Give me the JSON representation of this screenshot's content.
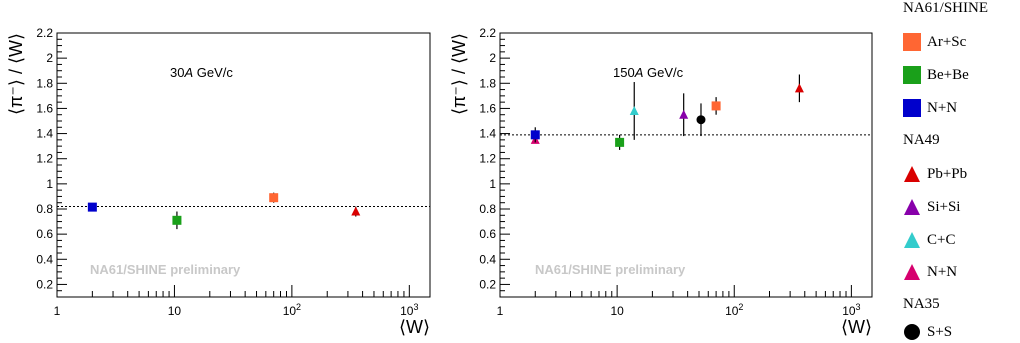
{
  "chart_data": [
    {
      "type": "scatter",
      "annotation": "30A GeV/c",
      "annotation_parts": [
        "30",
        "A",
        " GeV/c"
      ],
      "watermark": "NA61/SHINE preliminary",
      "xlabel": "⟨W⟩",
      "ylabel": "⟨π⁻⟩ / ⟨W⟩",
      "x_scale": "log",
      "xlim": [
        1,
        1500
      ],
      "ylim": [
        0.1,
        2.2
      ],
      "x_tick_labels": [
        "1",
        "10",
        "10²",
        "10³"
      ],
      "y_tick_labels": [
        "0.2",
        "0.4",
        "0.6",
        "0.8",
        "1",
        "1.2",
        "1.4",
        "1.6",
        "1.8",
        "2",
        "2.2"
      ],
      "reference_line": 0.82,
      "series": [
        {
          "name": "N+N",
          "marker": "square",
          "color": "#0000cc",
          "x": [
            2
          ],
          "y": [
            0.815
          ],
          "err": [
            0.02
          ]
        },
        {
          "name": "Be+Be",
          "marker": "square",
          "color": "#1aa01a",
          "x": [
            10.5
          ],
          "y": [
            0.71
          ],
          "err": [
            0.07
          ]
        },
        {
          "name": "Ar+Sc",
          "marker": "square",
          "color": "#ff6633",
          "x": [
            70
          ],
          "y": [
            0.89
          ],
          "err": [
            0.04
          ]
        },
        {
          "name": "Pb+Pb",
          "marker": "triangle",
          "color": "#d90000",
          "x": [
            350
          ],
          "y": [
            0.78
          ],
          "err": [
            0.04
          ]
        }
      ]
    },
    {
      "type": "scatter",
      "annotation": "150A GeV/c",
      "annotation_parts": [
        "150",
        "A",
        " GeV/c"
      ],
      "watermark": "NA61/SHINE preliminary",
      "xlabel": "⟨W⟩",
      "ylabel": "⟨π⁻⟩ / ⟨W⟩",
      "x_scale": "log",
      "xlim": [
        1,
        1500
      ],
      "ylim": [
        0.1,
        2.2
      ],
      "x_tick_labels": [
        "1",
        "10",
        "10²",
        "10³"
      ],
      "y_tick_labels": [
        "0.2",
        "0.4",
        "0.6",
        "0.8",
        "1",
        "1.2",
        "1.4",
        "1.6",
        "1.8",
        "2",
        "2.2"
      ],
      "reference_line": 1.39,
      "series": [
        {
          "name": "N+N (NA49)",
          "marker": "triangle",
          "color": "#d6006e",
          "x": [
            2
          ],
          "y": [
            1.35
          ],
          "err": [
            0.02
          ]
        },
        {
          "name": "N+N",
          "marker": "square",
          "color": "#0000cc",
          "x": [
            2
          ],
          "y": [
            1.39
          ],
          "err": [
            0.06
          ]
        },
        {
          "name": "Be+Be",
          "marker": "square",
          "color": "#1aa01a",
          "x": [
            10.5
          ],
          "y": [
            1.33
          ],
          "err": [
            0.06
          ]
        },
        {
          "name": "C+C",
          "marker": "triangle",
          "color": "#33cccc",
          "x": [
            14
          ],
          "y": [
            1.58
          ],
          "err": [
            0.23
          ]
        },
        {
          "name": "Si+Si",
          "marker": "triangle",
          "color": "#8800aa",
          "x": [
            37
          ],
          "y": [
            1.55
          ],
          "err": [
            0.17
          ]
        },
        {
          "name": "S+S",
          "marker": "circle",
          "color": "#000000",
          "x": [
            52
          ],
          "y": [
            1.51
          ],
          "err": [
            0.13
          ]
        },
        {
          "name": "Ar+Sc",
          "marker": "square",
          "color": "#ff6633",
          "x": [
            70
          ],
          "y": [
            1.62
          ],
          "err": [
            0.07
          ]
        },
        {
          "name": "Pb+Pb",
          "marker": "triangle",
          "color": "#d90000",
          "x": [
            360
          ],
          "y": [
            1.76
          ],
          "err": [
            0.11
          ]
        }
      ]
    }
  ],
  "legend": {
    "groups": [
      {
        "title": "NA61/SHINE",
        "items": [
          {
            "label": "Ar+Sc",
            "marker": "square",
            "color": "#ff6633"
          },
          {
            "label": "Be+Be",
            "marker": "square",
            "color": "#1aa01a"
          },
          {
            "label": "N+N",
            "marker": "square",
            "color": "#0000cc"
          }
        ]
      },
      {
        "title": "NA49",
        "items": [
          {
            "label": "Pb+Pb",
            "marker": "triangle",
            "color": "#d90000"
          },
          {
            "label": "Si+Si",
            "marker": "triangle",
            "color": "#8800aa"
          },
          {
            "label": "C+C",
            "marker": "triangle",
            "color": "#33cccc"
          },
          {
            "label": "N+N",
            "marker": "triangle",
            "color": "#d6006e"
          }
        ]
      },
      {
        "title": "NA35",
        "items": [
          {
            "label": "S+S",
            "marker": "circle",
            "color": "#000000"
          }
        ]
      }
    ]
  }
}
